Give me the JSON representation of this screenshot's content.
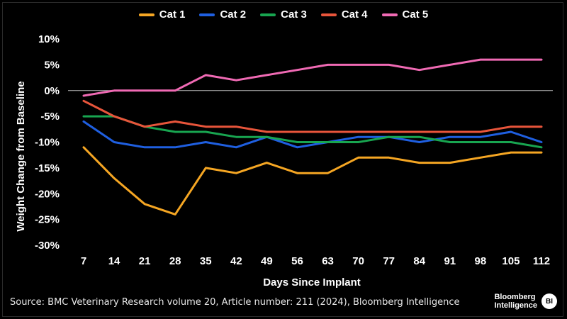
{
  "chart_data": {
    "type": "line",
    "title": "",
    "xlabel": "Days Since Implant",
    "ylabel": "Weight Change from Baseline",
    "x": [
      7,
      14,
      21,
      28,
      35,
      42,
      49,
      56,
      63,
      70,
      77,
      84,
      91,
      98,
      105,
      112
    ],
    "x_tick_labels": [
      "7",
      "14",
      "21",
      "28",
      "35",
      "42",
      "49",
      "56",
      "63",
      "70",
      "77",
      "84",
      "91",
      "98",
      "105",
      "112"
    ],
    "ylim": [
      -30,
      10
    ],
    "y_ticks": [
      10,
      5,
      0,
      -5,
      -10,
      -15,
      -20,
      -25,
      -30
    ],
    "y_tick_labels": [
      "10%",
      "5%",
      "0%",
      "-5%",
      "-10%",
      "-15%",
      "-20%",
      "-25%",
      "-30%"
    ],
    "legend_position": "top-center",
    "series": [
      {
        "name": "Cat 1",
        "color": "#f5a623",
        "values": [
          -11,
          -17,
          -22,
          -24,
          -15,
          -16,
          -14,
          -16,
          -16,
          -13,
          -13,
          -14,
          -14,
          -13,
          -12,
          -12
        ]
      },
      {
        "name": "Cat 2",
        "color": "#1f5fe0",
        "values": [
          -6,
          -10,
          -11,
          -11,
          -10,
          -11,
          -9,
          -11,
          -10,
          -9,
          -9,
          -10,
          -9,
          -9,
          -8,
          -10
        ]
      },
      {
        "name": "Cat 3",
        "color": "#18a550",
        "values": [
          -5,
          -5,
          -7,
          -8,
          -8,
          -9,
          -9,
          -10,
          -10,
          -10,
          -9,
          -9,
          -10,
          -10,
          -10,
          -11
        ]
      },
      {
        "name": "Cat 4",
        "color": "#e8553b",
        "values": [
          -2,
          -5,
          -7,
          -6,
          -7,
          -7,
          -8,
          -8,
          -8,
          -8,
          -8,
          -8,
          -8,
          -8,
          -7,
          -7
        ]
      },
      {
        "name": "Cat 5",
        "color": "#f06ab4",
        "values": [
          -1,
          0,
          0,
          0,
          3,
          2,
          3,
          4,
          5,
          5,
          5,
          4,
          5,
          6,
          6,
          6
        ]
      }
    ]
  },
  "source": "Source: BMC Veterinary Research volume 20, Article number: 211 (2024), Bloomberg Intelligence",
  "logo": {
    "line1": "Bloomberg",
    "line2": "Intelligence",
    "badge": "BI"
  }
}
